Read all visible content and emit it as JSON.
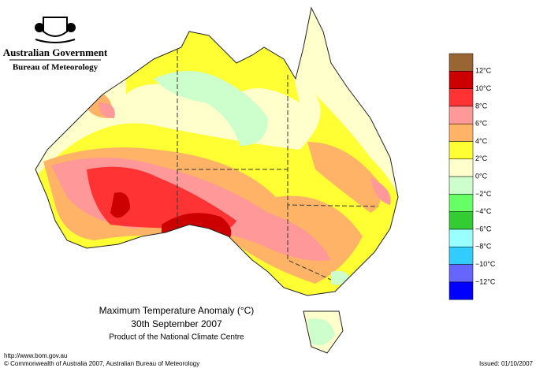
{
  "header": {
    "government": "Australian Government",
    "agency": "Bureau of Meteorology"
  },
  "title": {
    "line1": "Maximum Temperature Anomaly (°C)",
    "line2": "30th September 2007",
    "line3": "Product of the National Climate Centre"
  },
  "legend": {
    "colors": [
      "#996633",
      "#cc0000",
      "#ff3333",
      "#ff9999",
      "#ffb366",
      "#ffff33",
      "#ffffcc",
      "#ccffcc",
      "#66ff66",
      "#33cc33",
      "#99ffff",
      "#33ccff",
      "#6666ff",
      "#0000ff"
    ],
    "labels": [
      "12°C",
      "10°C",
      "8°C",
      "6°C",
      "4°C",
      "2°C",
      "0°C",
      "−2°C",
      "−4°C",
      "−6°C",
      "−8°C",
      "−10°C",
      "−12°C"
    ]
  },
  "footer": {
    "url": "http://www.bom.gov.au",
    "copyright": "© Commonwealth of Australia 2007, Australian Bureau of Meteorology",
    "issued": "Issued: 01/10/2007"
  }
}
